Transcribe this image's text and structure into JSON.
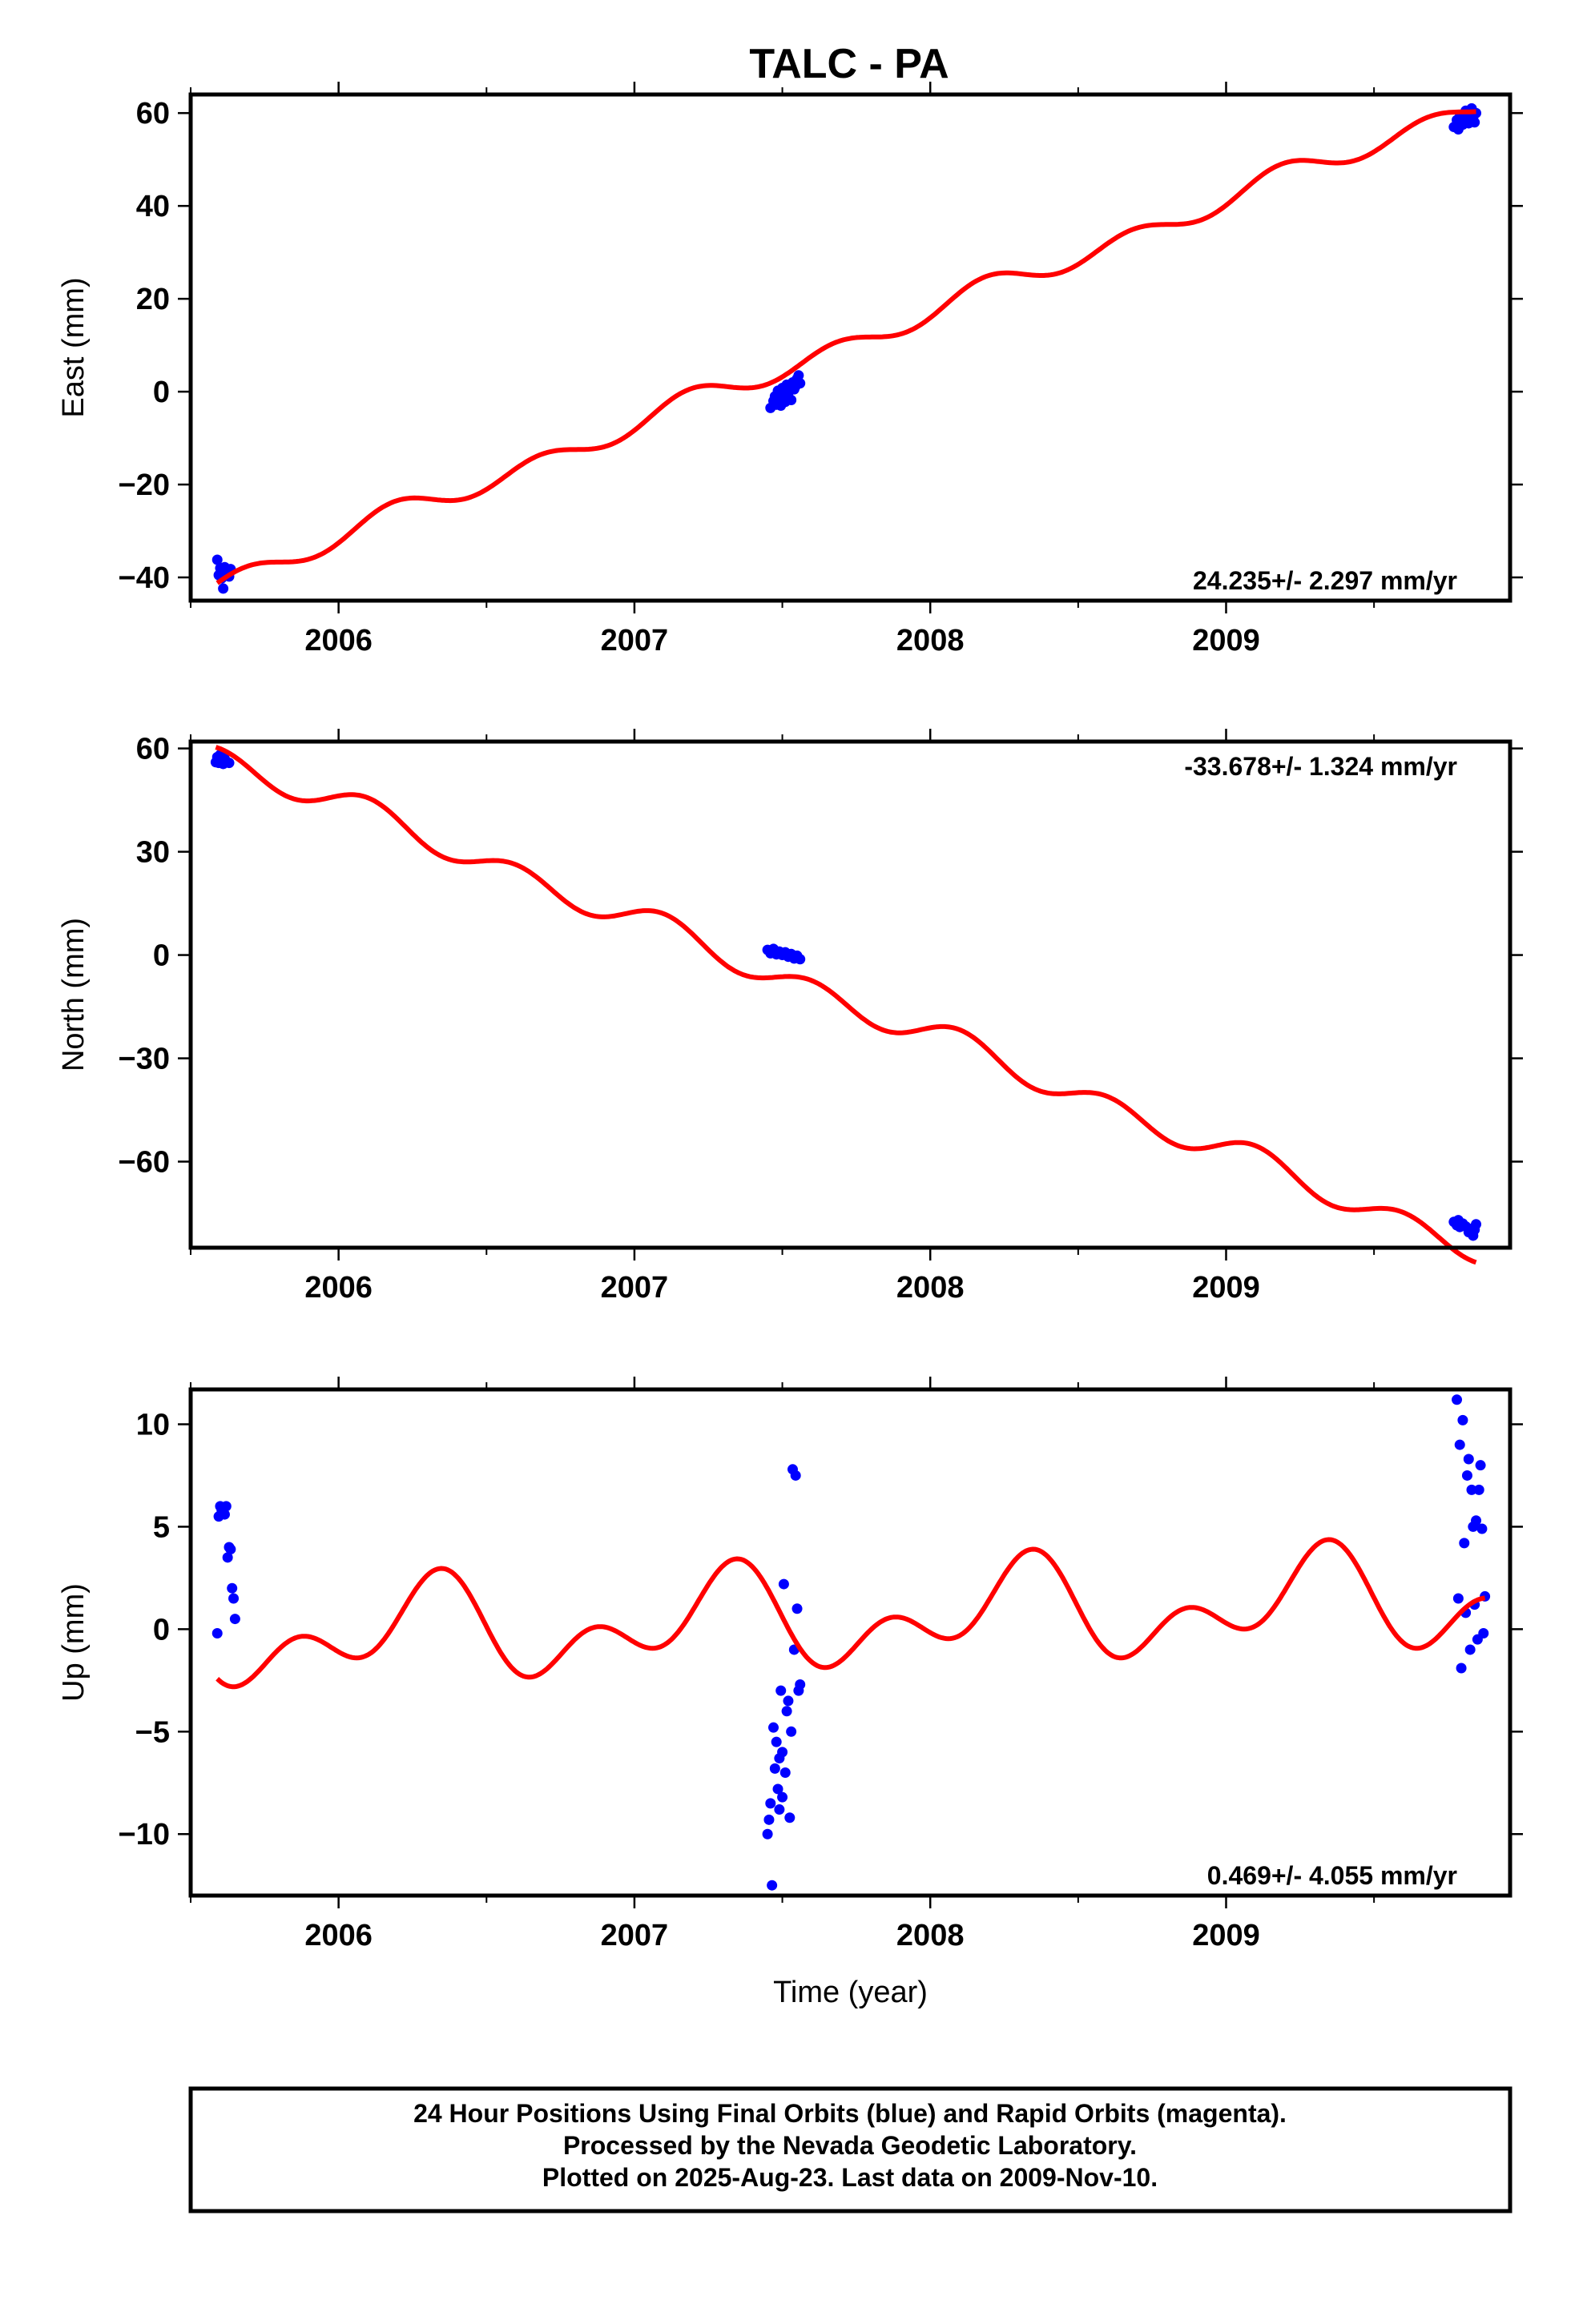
{
  "title": "TALC - PA",
  "footer": {
    "lines": [
      "24 Hour Positions Using Final Orbits (blue) and Rapid Orbits (magenta).",
      "Processed by the Nevada Geodetic Laboratory.",
      "Plotted on 2025-Aug-23. Last data on 2009-Nov-10."
    ]
  },
  "colors": {
    "data": "#0000ff",
    "model": "#ff0000",
    "frame": "#000000"
  },
  "chart_data": [
    {
      "type": "scatter",
      "ylabel": "East (mm)",
      "xlabel": "",
      "xlim": [
        2005.5,
        2009.96
      ],
      "ylim": [
        -45,
        64
      ],
      "xticks": [
        2006,
        2007,
        2008,
        2009
      ],
      "yticks": [
        -40,
        -20,
        0,
        20,
        40,
        60
      ],
      "rate_text": "24.235+/- 2.297 mm/yr",
      "rate_position": "bottom-right",
      "model": {
        "slope": 24.235,
        "intercept": -41.3,
        "ann_cos": 0.3,
        "ann_sin": 0.9,
        "semi_cos": -1.5,
        "semi_sin": 1.6
      },
      "points": [
        [
          2005.59,
          -36.2
        ],
        [
          2005.595,
          -39.5
        ],
        [
          2005.6,
          -38.0
        ],
        [
          2005.605,
          -40.2
        ],
        [
          2005.61,
          -42.4
        ],
        [
          2005.615,
          -37.8
        ],
        [
          2005.62,
          -39.0
        ],
        [
          2005.625,
          -38.5
        ],
        [
          2005.63,
          -39.8
        ],
        [
          2005.635,
          -38.2
        ],
        [
          2007.46,
          -3.5
        ],
        [
          2007.47,
          -2.0
        ],
        [
          2007.475,
          -1.0
        ],
        [
          2007.48,
          -2.8
        ],
        [
          2007.485,
          0.2
        ],
        [
          2007.49,
          -1.5
        ],
        [
          2007.495,
          -3.0
        ],
        [
          2007.5,
          0.8
        ],
        [
          2007.505,
          -0.5
        ],
        [
          2007.51,
          -2.2
        ],
        [
          2007.515,
          1.5
        ],
        [
          2007.52,
          -1.0
        ],
        [
          2007.525,
          0.3
        ],
        [
          2007.53,
          -1.8
        ],
        [
          2007.535,
          2.0
        ],
        [
          2007.54,
          0.5
        ],
        [
          2007.545,
          1.2
        ],
        [
          2007.55,
          2.8
        ],
        [
          2007.555,
          3.5
        ],
        [
          2007.56,
          1.8
        ],
        [
          2009.77,
          57.0
        ],
        [
          2009.78,
          58.5
        ],
        [
          2009.785,
          56.5
        ],
        [
          2009.79,
          59.2
        ],
        [
          2009.8,
          57.5
        ],
        [
          2009.805,
          58.8
        ],
        [
          2009.81,
          60.5
        ],
        [
          2009.815,
          59.8
        ],
        [
          2009.82,
          57.8
        ],
        [
          2009.83,
          61.0
        ],
        [
          2009.835,
          59.0
        ],
        [
          2009.84,
          58.0
        ],
        [
          2009.845,
          60.0
        ]
      ]
    },
    {
      "type": "scatter",
      "ylabel": "North (mm)",
      "xlabel": "",
      "xlim": [
        2005.5,
        2009.96
      ],
      "ylim": [
        -85,
        62
      ],
      "xticks": [
        2006,
        2007,
        2008,
        2009
      ],
      "yticks": [
        -60,
        -30,
        0,
        30,
        60
      ],
      "rate_text": "-33.678+/- 1.324 mm/yr",
      "rate_position": "top-right",
      "model": {
        "slope": -33.678,
        "intercept": 58.0,
        "ann_cos": 1.0,
        "ann_sin": 0.8,
        "semi_cos": 1.2,
        "semi_sin": 3.5
      },
      "points": [
        [
          2005.585,
          56.0
        ],
        [
          2005.59,
          57.5
        ],
        [
          2005.595,
          55.8
        ],
        [
          2005.6,
          58.2
        ],
        [
          2005.605,
          56.5
        ],
        [
          2005.61,
          55.5
        ],
        [
          2005.615,
          57.0
        ],
        [
          2005.62,
          56.2
        ],
        [
          2005.63,
          55.8
        ],
        [
          2007.45,
          1.5
        ],
        [
          2007.46,
          0.5
        ],
        [
          2007.47,
          1.8
        ],
        [
          2007.48,
          0.2
        ],
        [
          2007.49,
          1.0
        ],
        [
          2007.5,
          0.0
        ],
        [
          2007.51,
          0.8
        ],
        [
          2007.52,
          -0.5
        ],
        [
          2007.53,
          0.3
        ],
        [
          2007.54,
          -1.0
        ],
        [
          2007.55,
          -0.2
        ],
        [
          2007.56,
          -1.2
        ],
        [
          2009.77,
          -77.5
        ],
        [
          2009.78,
          -78.5
        ],
        [
          2009.785,
          -77.0
        ],
        [
          2009.79,
          -79.0
        ],
        [
          2009.8,
          -78.0
        ],
        [
          2009.81,
          -78.8
        ],
        [
          2009.82,
          -80.5
        ],
        [
          2009.83,
          -79.5
        ],
        [
          2009.835,
          -81.5
        ],
        [
          2009.84,
          -79.8
        ],
        [
          2009.845,
          -78.2
        ]
      ]
    },
    {
      "type": "scatter",
      "ylabel": "Up (mm)",
      "xlabel": "Time (year)",
      "xlim": [
        2005.5,
        2009.96
      ],
      "ylim": [
        -13,
        11.7
      ],
      "xticks": [
        2006,
        2007,
        2008,
        2009
      ],
      "yticks": [
        -10,
        -5,
        0,
        5,
        10
      ],
      "rate_text": "0.469+/- 4.055 mm/yr",
      "rate_position": "bottom-right",
      "model": {
        "slope": 0.469,
        "intercept": -0.5,
        "ann_cos": -0.5,
        "ann_sin": 1.6,
        "semi_cos": -0.3,
        "semi_sin": -1.5
      },
      "points": [
        [
          2005.59,
          -0.2
        ],
        [
          2005.595,
          5.5
        ],
        [
          2005.6,
          6.0
        ],
        [
          2005.605,
          5.8
        ],
        [
          2005.61,
          5.9
        ],
        [
          2005.615,
          5.6
        ],
        [
          2005.62,
          6.0
        ],
        [
          2005.625,
          3.5
        ],
        [
          2005.63,
          4.0
        ],
        [
          2005.635,
          3.9
        ],
        [
          2005.64,
          2.0
        ],
        [
          2005.645,
          1.5
        ],
        [
          2005.65,
          0.5
        ],
        [
          2007.45,
          -10.0
        ],
        [
          2007.455,
          -9.3
        ],
        [
          2007.46,
          -8.5
        ],
        [
          2007.465,
          -12.5
        ],
        [
          2007.47,
          -4.8
        ],
        [
          2007.475,
          -6.8
        ],
        [
          2007.48,
          -5.5
        ],
        [
          2007.485,
          -7.8
        ],
        [
          2007.49,
          -8.8
        ],
        [
          2007.495,
          -3.0
        ],
        [
          2007.5,
          -6.0
        ],
        [
          2007.505,
          2.2
        ],
        [
          2007.51,
          -7.0
        ],
        [
          2007.515,
          -4.0
        ],
        [
          2007.52,
          -3.5
        ],
        [
          2007.525,
          -9.2
        ],
        [
          2007.53,
          -5.0
        ],
        [
          2007.535,
          7.8
        ],
        [
          2007.54,
          -1.0
        ],
        [
          2007.545,
          7.5
        ],
        [
          2007.55,
          1.0
        ],
        [
          2007.555,
          -3.0
        ],
        [
          2007.56,
          -2.7
        ],
        [
          2007.5,
          -8.2
        ],
        [
          2007.49,
          -6.3
        ],
        [
          2009.78,
          11.2
        ],
        [
          2009.785,
          1.5
        ],
        [
          2009.79,
          9.0
        ],
        [
          2009.795,
          -1.9
        ],
        [
          2009.8,
          10.2
        ],
        [
          2009.805,
          4.2
        ],
        [
          2009.81,
          0.8
        ],
        [
          2009.815,
          7.5
        ],
        [
          2009.82,
          8.3
        ],
        [
          2009.825,
          -1.0
        ],
        [
          2009.83,
          6.8
        ],
        [
          2009.835,
          5.0
        ],
        [
          2009.84,
          1.2
        ],
        [
          2009.845,
          5.3
        ],
        [
          2009.85,
          -0.5
        ],
        [
          2009.855,
          6.8
        ],
        [
          2009.86,
          8.0
        ],
        [
          2009.865,
          4.9
        ],
        [
          2009.87,
          -0.2
        ],
        [
          2009.875,
          1.6
        ]
      ]
    }
  ]
}
